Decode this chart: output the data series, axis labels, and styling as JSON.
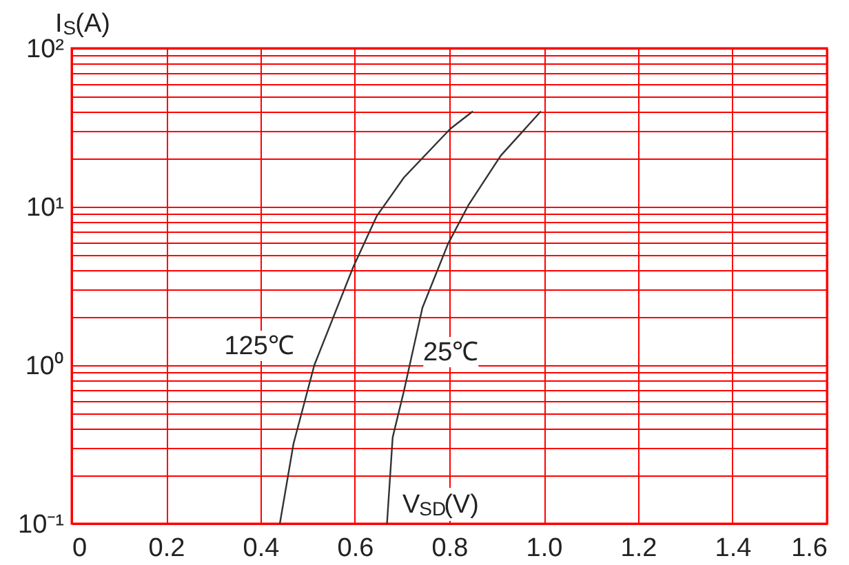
{
  "chart_data": {
    "type": "line",
    "xlabel": "V$_{SD}$(V)",
    "ylabel": "I$_{S}$(A)",
    "log": "y",
    "grid": true,
    "legend": false,
    "marker": "none",
    "line_style": "solid",
    "xlim": [
      0,
      1.6
    ],
    "xticks": [
      0,
      0.2,
      0.4,
      0.6,
      0.8,
      {
        "value": 1.0,
        "label": "1.0"
      },
      1.2,
      1.4,
      1.6
    ],
    "ylim": [
      0.1,
      100
    ],
    "yticks": [
      {
        "value": 0.1,
        "label": "10⁻¹"
      },
      {
        "value": 0.2,
        "label": null
      },
      {
        "value": 0.3,
        "label": null
      },
      {
        "value": 0.4,
        "label": null
      },
      {
        "value": 0.5,
        "label": null
      },
      {
        "value": 0.6,
        "label": null
      },
      {
        "value": 0.7,
        "label": null
      },
      {
        "value": 0.8,
        "label": null
      },
      {
        "value": 0.9,
        "label": null
      },
      {
        "value": 1,
        "label": "10⁰"
      },
      {
        "value": 2,
        "label": null
      },
      {
        "value": 3,
        "label": null
      },
      {
        "value": 4,
        "label": null
      },
      {
        "value": 5,
        "label": null
      },
      {
        "value": 6,
        "label": null
      },
      {
        "value": 7,
        "label": null
      },
      {
        "value": 8,
        "label": null
      },
      {
        "value": 9,
        "label": null
      },
      {
        "value": 10,
        "label": "10¹"
      },
      {
        "value": 20,
        "label": null
      },
      {
        "value": 30,
        "label": null
      },
      {
        "value": 40,
        "label": null
      },
      {
        "value": 50,
        "label": null
      },
      {
        "value": 60,
        "label": null
      },
      {
        "value": 70,
        "label": null
      },
      {
        "value": 80,
        "label": null
      },
      {
        "value": 90,
        "label": null
      },
      {
        "value": 100,
        "label": "10²"
      }
    ],
    "series": [
      {
        "name": "125℃",
        "color": "#333333",
        "x": [
          0.441,
          0.47,
          0.514,
          0.597,
          0.646,
          0.704,
          0.802,
          0.85
        ],
        "values": [
          0.1,
          0.32,
          1.0,
          4.2,
          8.7,
          15.3,
          31,
          40
        ]
      },
      {
        "name": "25℃",
        "color": "#333333",
        "x": [
          0.668,
          0.68,
          0.704,
          0.743,
          0.797,
          0.841,
          0.909,
          0.994
        ],
        "values": [
          0.1,
          0.35,
          0.69,
          2.3,
          5.8,
          10.3,
          21,
          40
        ]
      }
    ]
  }
}
